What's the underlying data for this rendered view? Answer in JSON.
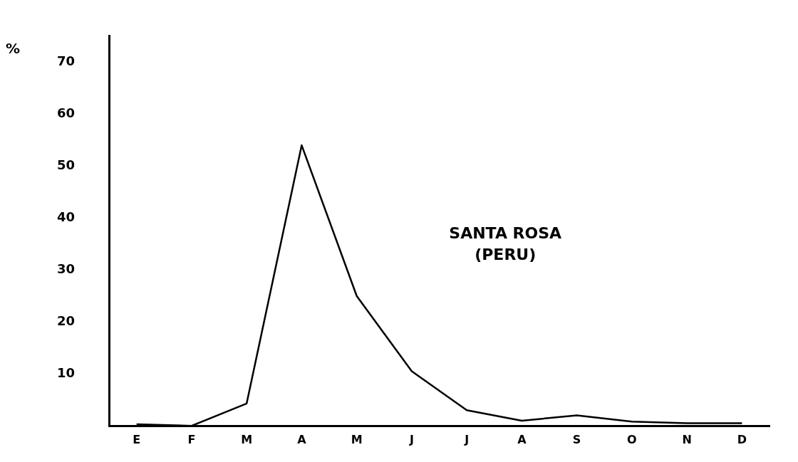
{
  "chart_data": {
    "type": "line",
    "ylabel": "%",
    "categories": [
      "E",
      "F",
      "M",
      "A",
      "M",
      "J",
      "J",
      "A",
      "S",
      "O",
      "N",
      "D"
    ],
    "series": [
      {
        "color": "#000000",
        "values": [
          0.3,
          0,
          4.3,
          54,
          25,
          10.5,
          3,
          1,
          2,
          0.8,
          0.5,
          0.5
        ]
      }
    ],
    "ylim": [
      0,
      75
    ],
    "yticks": [
      10,
      20,
      30,
      40,
      50,
      60,
      70
    ],
    "grid": false,
    "legend": false,
    "marker": "none",
    "line_style": "solid",
    "annotations": [
      "SANTA ROSA\n(PERU)"
    ]
  }
}
